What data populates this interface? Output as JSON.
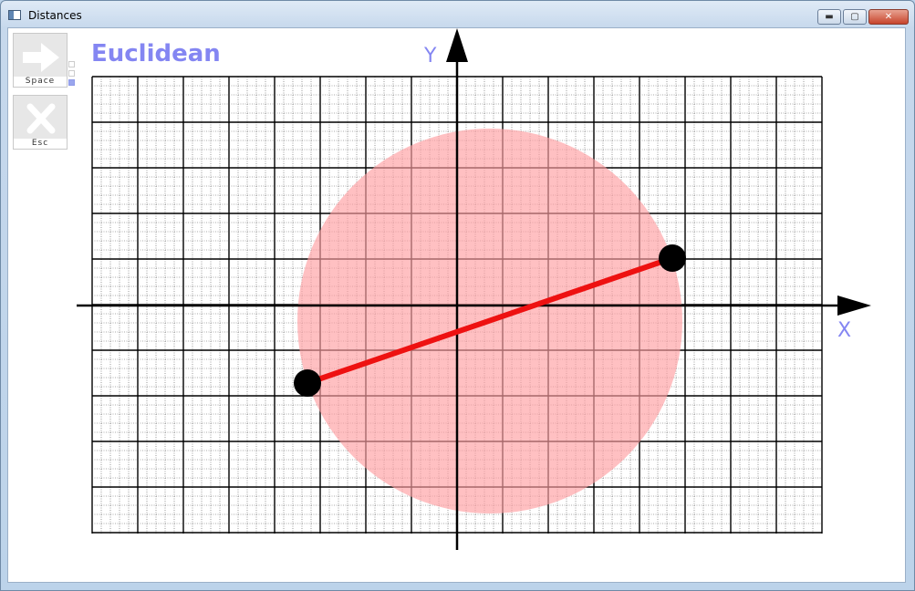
{
  "window": {
    "title": "Distances"
  },
  "toolbar": {
    "next_label": "Space",
    "exit_label": "Esc"
  },
  "heading": "Euclidean",
  "axes": {
    "x_label": "X",
    "y_label": "Y"
  },
  "colors": {
    "heading": "#8486f2",
    "axis_label": "#8486f2",
    "circle": "#ffb4b6",
    "segment": "#ee1111",
    "point": "#000000",
    "grid_major": "#000000",
    "grid_minor": "#555555"
  },
  "icons": {
    "next": "arrow-right-icon",
    "exit": "x-icon"
  }
}
